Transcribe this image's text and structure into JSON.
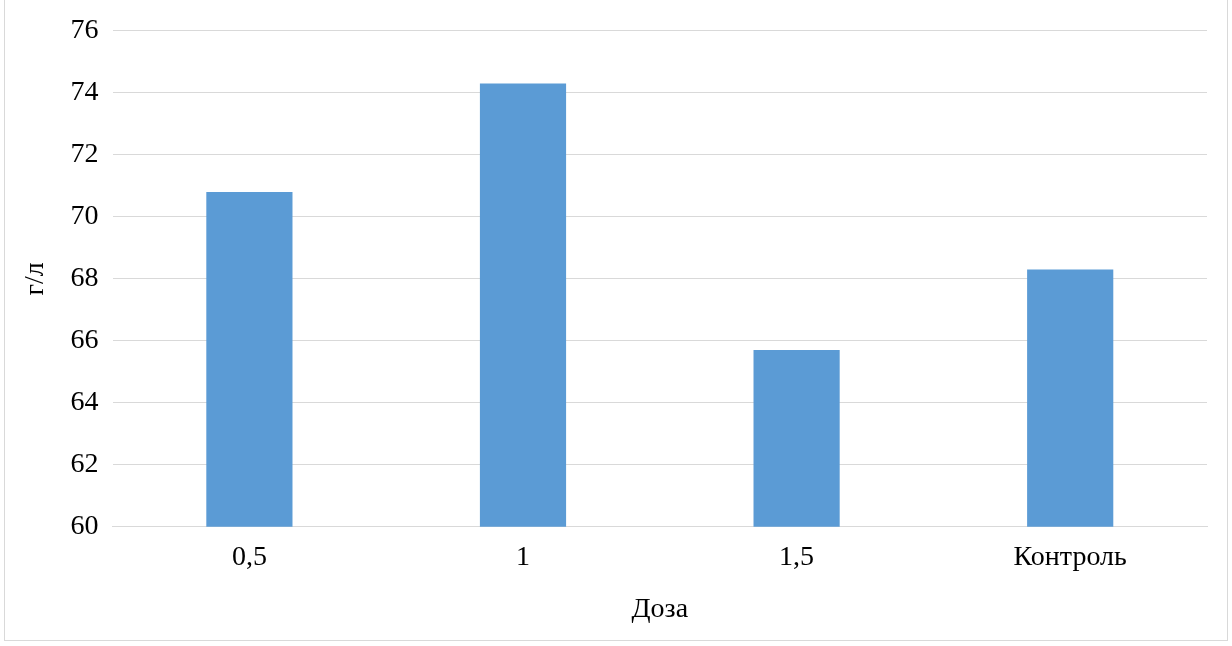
{
  "chart_data": {
    "type": "bar",
    "xlabel": "Доза",
    "ylabel": "г/л",
    "categories": [
      "0,5",
      "1",
      "1,5",
      "Контроль"
    ],
    "values": [
      70.8,
      74.3,
      65.7,
      68.3
    ],
    "color": "#5b9bd5",
    "ylim": [
      60,
      76
    ],
    "yticks": [
      60,
      62,
      64,
      66,
      68,
      70,
      72,
      74,
      76
    ],
    "grid": "y",
    "legend": false
  }
}
